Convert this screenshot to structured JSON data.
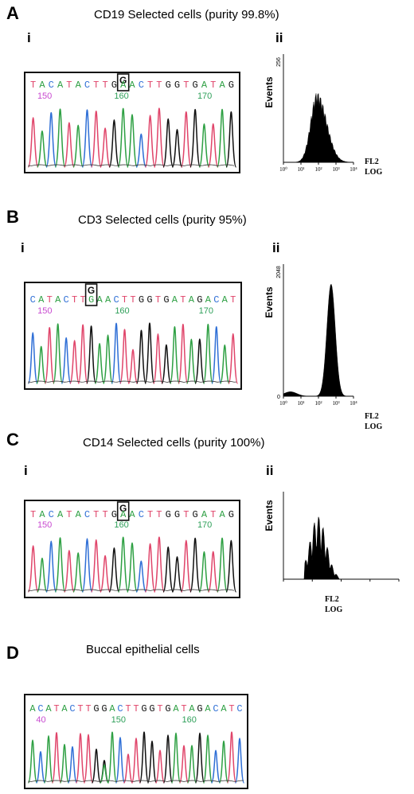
{
  "colors": {
    "A": "#2ea043",
    "C": "#2f6fd6",
    "G": "#111111",
    "T": "#e0456a",
    "pos150": "#c84ad0",
    "pos160": "#2fa05a"
  },
  "panels": [
    {
      "letter": "A",
      "title": "CD19 Selected cells  (purity 99.8%)",
      "sub_i": "i",
      "sub_ii": "ii",
      "sequence": "TACATACTTGAACTTGGTGATAG",
      "boxed_base": "G",
      "positions": [
        "150",
        "160",
        "170"
      ],
      "flow": {
        "y_label": "Events",
        "y_max": "256",
        "x_label_1": "FL2",
        "x_label_2": "LOG",
        "ticks": [
          "10⁰",
          "10¹",
          "10²",
          "10³",
          "10⁴"
        ]
      }
    },
    {
      "letter": "B",
      "title": "CD3 Selected cells (purity 95%)",
      "sub_i": "i",
      "sub_ii": "ii",
      "sequence": "CATACTTGAACTTGGTGATAGACAT",
      "boxed_base": "G",
      "positions": [
        "150",
        "160",
        "170"
      ],
      "flow": {
        "y_label": "Events",
        "y_max": "2048",
        "y_min": "0",
        "x_label_1": "FL2",
        "x_label_2": "LOG",
        "ticks": [
          "10⁰",
          "10¹",
          "10²",
          "10³",
          "10⁴"
        ]
      }
    },
    {
      "letter": "C",
      "title": "CD14 Selected cells  (purity 100%)",
      "sub_i": "i",
      "sub_ii": "ii",
      "sequence": "TACATACTTGAACTTGGTGATAG",
      "boxed_base": "G",
      "positions": [
        "150",
        "160",
        "170"
      ],
      "flow": {
        "y_label": "Events",
        "x_label_1": "FL2",
        "x_label_2": "LOG"
      }
    },
    {
      "letter": "D",
      "title": "Buccal epithelial cells",
      "sequence": "ACATACTTGGACTTGGTGATAGACATC",
      "positions": [
        "40",
        "150",
        "160"
      ]
    }
  ]
}
